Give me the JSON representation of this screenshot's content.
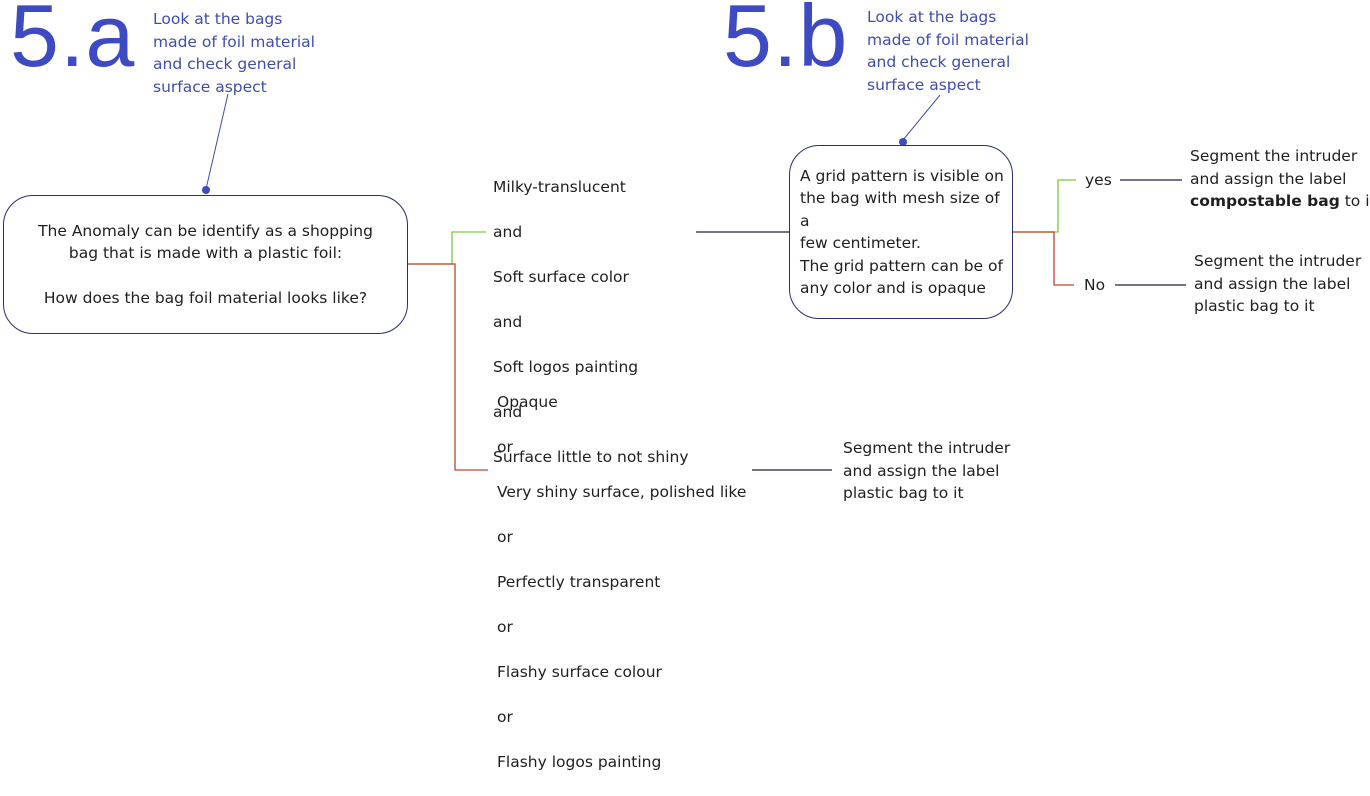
{
  "part_a": {
    "label": "5.a",
    "note": "Look at the bags\nmade of foil material\nand check general\nsurface aspect",
    "question": {
      "line1": "The Anomaly can be identify as a shopping",
      "line2": "bag that is made with a plastic foil:",
      "line3": "How does the bag foil material looks like?"
    },
    "option_soft": [
      "Milky-translucent",
      "and",
      "Soft surface color",
      "and",
      "Soft logos painting",
      "and",
      "Surface little to not shiny"
    ],
    "option_flashy": [
      "Opaque",
      "or",
      "Very shiny surface, polished like",
      "or",
      "Perfectly transparent",
      "or",
      "Flashy surface colour",
      "or",
      "Flashy logos painting"
    ],
    "result_plastic": "Segment the intruder\nand assign the label\nplastic bag to it"
  },
  "part_b": {
    "label": "5.b",
    "note": "Look at the bags\nmade of foil material\nand check general\nsurface aspect",
    "question": "A grid pattern is visible on\nthe bag with mesh size of a\nfew centimeter.\nThe grid pattern can be  of\nany color and is opaque",
    "yes_label": "yes",
    "no_label": "No",
    "result_yes": {
      "line1": "Segment the intruder",
      "line2": "and assign the label",
      "bold": "compostable bag",
      "suffix": " to it"
    },
    "result_no": "Segment the intruder\nand assign the label\nplastic bag to it"
  },
  "colors": {
    "accent": "#3d4ac4",
    "box_border": "#2b2f6e",
    "yes_branch": "#7ac943",
    "no_branch": "#c1432f",
    "connector": "#1f2340"
  }
}
